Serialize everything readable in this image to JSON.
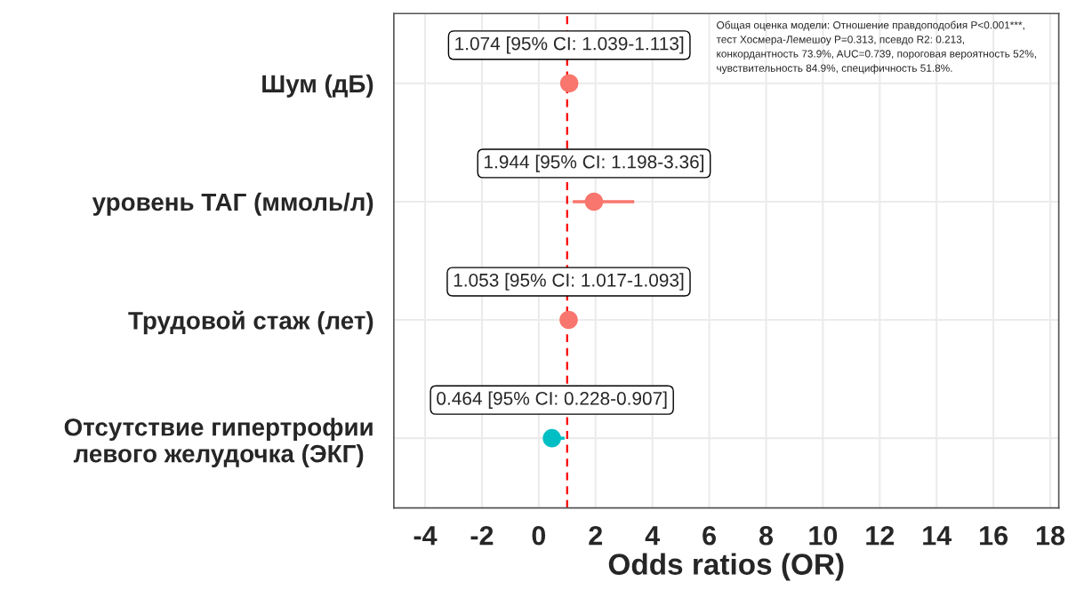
{
  "chart_data": {
    "type": "scatter",
    "orientation": "horizontal",
    "xlabel": "Odds ratios (OR)",
    "categories": [
      "Шум (дБ)",
      "уровень ТАГ (ммоль/л)",
      "Трудовой стаж (лет)",
      "Отсутствие гипертрофии\nлевого желудочка (ЭКГ)"
    ],
    "values": [
      1.074,
      1.944,
      1.053,
      0.464
    ],
    "errors": [
      [
        1.039,
        1.113
      ],
      [
        1.198,
        3.36
      ],
      [
        1.017,
        1.093
      ],
      [
        0.228,
        0.907
      ]
    ],
    "colors": [
      "#f8766d",
      "#f8766d",
      "#f8766d",
      "#00bfc4"
    ],
    "value_labels": [
      "1.074 [95% CI: 1.039-1.113]",
      "1.944 [95% CI: 1.198-3.36]",
      "1.053 [95% CI: 1.017-1.093]",
      "0.464 [95% CI: 0.228-0.907]"
    ],
    "xlim": [
      -5.1,
      18.3
    ],
    "xticks": [
      {
        "value": -4,
        "label": "-4"
      },
      {
        "value": -2,
        "label": "-2"
      },
      0,
      2,
      4,
      6,
      8,
      10,
      12,
      14,
      16,
      18
    ],
    "ref_lines": [
      {
        "axis": "x",
        "value": 1,
        "color": "#ff0000",
        "line_style": "dashed"
      }
    ],
    "annotations": [
      "Общая оценка модели: Отношение правдоподобия P<0.001***,\nтест Хосмера-Лемешоу P=0.313, псевдо R2: 0.213,\nконкордантность 73.9%, AUC=0.739, пороговая вероятность 52%,\nчувствительность 84.9%, специфичность 51.8%."
    ],
    "marker": "circle",
    "grid": true,
    "legend": false
  }
}
